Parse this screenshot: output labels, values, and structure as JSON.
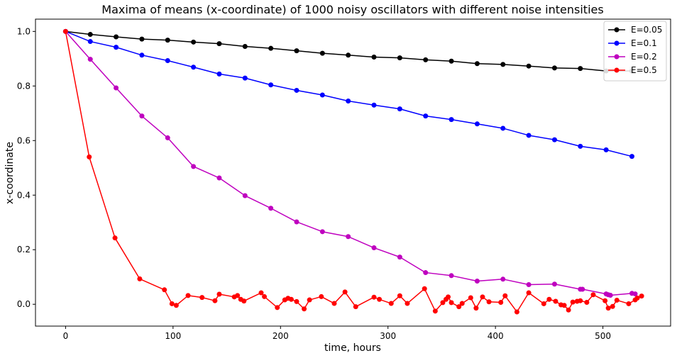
{
  "chart_data": {
    "type": "line",
    "title": "Maxima of means (x-coordinate) of 1000 noisy oscillators with different noise intensities",
    "xlabel": "time, hours",
    "ylabel": "x-coordinate",
    "xlim": [
      -28,
      563
    ],
    "ylim": [
      -0.08,
      1.045
    ],
    "xticks": [
      0,
      100,
      200,
      300,
      400,
      500
    ],
    "yticks": [
      0.0,
      0.2,
      0.4,
      0.6,
      0.8,
      1.0
    ],
    "xtick_labels": [
      "0",
      "100",
      "200",
      "300",
      "400",
      "500"
    ],
    "ytick_labels": [
      "0.0",
      "0.2",
      "0.4",
      "0.6",
      "0.8",
      "1.0"
    ],
    "grid": false,
    "legend_position": "top-right",
    "series": [
      {
        "name": "E=0.05",
        "color": "#000000",
        "x": [
          0,
          23,
          47,
          71,
          95,
          119,
          143,
          167,
          191,
          215,
          239,
          263,
          287,
          311,
          335,
          359,
          383,
          407,
          431,
          455,
          479,
          503,
          527
        ],
        "y": [
          1.0,
          0.989,
          0.98,
          0.972,
          0.968,
          0.961,
          0.955,
          0.945,
          0.938,
          0.929,
          0.92,
          0.913,
          0.906,
          0.903,
          0.896,
          0.891,
          0.882,
          0.879,
          0.873,
          0.866,
          0.864,
          0.855,
          0.855
        ]
      },
      {
        "name": "E=0.1",
        "color": "#0000ff",
        "x": [
          0,
          23,
          47,
          71,
          95,
          119,
          143,
          167,
          191,
          215,
          239,
          263,
          287,
          311,
          335,
          359,
          383,
          407,
          431,
          455,
          479,
          503,
          527
        ],
        "y": [
          1.0,
          0.963,
          0.942,
          0.913,
          0.893,
          0.869,
          0.844,
          0.829,
          0.804,
          0.784,
          0.767,
          0.745,
          0.73,
          0.716,
          0.69,
          0.677,
          0.661,
          0.645,
          0.619,
          0.603,
          0.579,
          0.566,
          0.542
        ]
      },
      {
        "name": "E=0.2",
        "color": "#bf00bf",
        "x": [
          0,
          23,
          47,
          71,
          95,
          119,
          143,
          167,
          191,
          215,
          239,
          263,
          287,
          311,
          335,
          359,
          383,
          407,
          431,
          455,
          479,
          481,
          503,
          505,
          507,
          527,
          530
        ],
        "y": [
          1.0,
          0.898,
          0.793,
          0.69,
          0.61,
          0.505,
          0.463,
          0.398,
          0.352,
          0.302,
          0.266,
          0.248,
          0.207,
          0.173,
          0.116,
          0.105,
          0.085,
          0.092,
          0.072,
          0.074,
          0.055,
          0.055,
          0.038,
          0.035,
          0.033,
          0.04,
          0.038
        ]
      },
      {
        "name": "E=0.5",
        "color": "#ff0000",
        "x": [
          0,
          22,
          46,
          69,
          92,
          99,
          103,
          114,
          127,
          139,
          143,
          157,
          160,
          163,
          166,
          182,
          185,
          197,
          204,
          207,
          210,
          215,
          222,
          227,
          238,
          250,
          260,
          270,
          287,
          292,
          303,
          311,
          318,
          334,
          344,
          351,
          354,
          356,
          359,
          366,
          369,
          377,
          382,
          388,
          394,
          405,
          409,
          420,
          431,
          445,
          450,
          456,
          461,
          464,
          468,
          472,
          476,
          479,
          485,
          491,
          502,
          505,
          509,
          513,
          524,
          530,
          532,
          536
        ],
        "y": [
          1.0,
          0.54,
          0.243,
          0.093,
          0.053,
          0.002,
          -0.004,
          0.032,
          0.025,
          0.013,
          0.037,
          0.027,
          0.032,
          0.018,
          0.012,
          0.042,
          0.028,
          -0.012,
          0.016,
          0.022,
          0.018,
          0.01,
          -0.017,
          0.016,
          0.028,
          0.003,
          0.045,
          -0.009,
          0.026,
          0.018,
          0.003,
          0.031,
          0.003,
          0.057,
          -0.025,
          0.006,
          0.018,
          0.027,
          0.006,
          -0.009,
          0.003,
          0.024,
          -0.014,
          0.027,
          0.009,
          0.007,
          0.031,
          -0.028,
          0.042,
          0.002,
          0.018,
          0.011,
          -0.002,
          -0.004,
          -0.021,
          0.008,
          0.011,
          0.013,
          0.007,
          0.035,
          0.013,
          -0.014,
          -0.008,
          0.015,
          0.002,
          0.016,
          0.023,
          0.03
        ]
      }
    ]
  }
}
